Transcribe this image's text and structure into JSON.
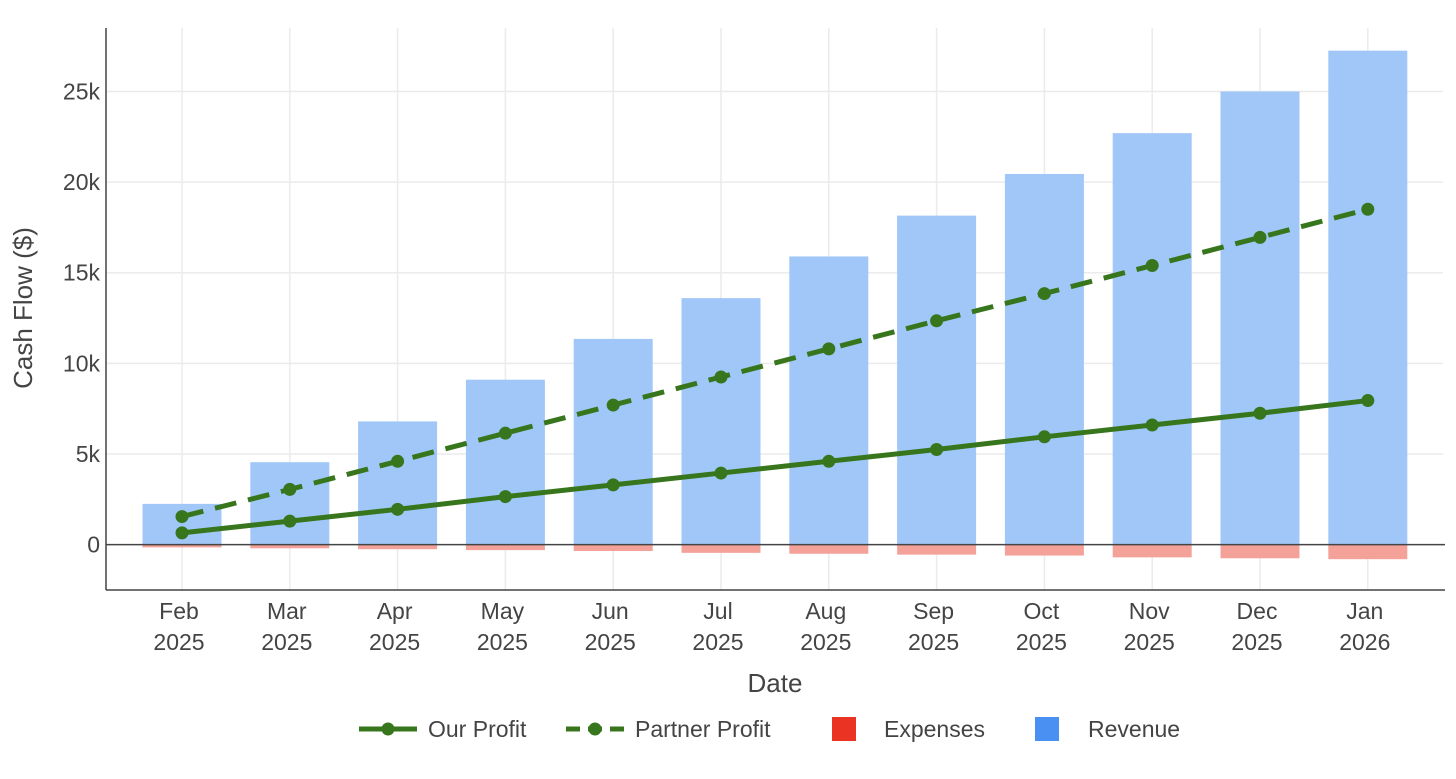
{
  "chart_data": {
    "type": "bar",
    "title": "",
    "xlabel": "Date",
    "ylabel": "Cash Flow ($)",
    "ylim": [
      -2500,
      28500
    ],
    "y_ticks": [
      0,
      5000,
      10000,
      15000,
      20000,
      25000
    ],
    "y_tick_labels": [
      "0",
      "5k",
      "10k",
      "15k",
      "20k",
      "25k"
    ],
    "grid": true,
    "legend_position": "bottom-center",
    "categories": [
      [
        "Feb",
        "2025"
      ],
      [
        "Mar",
        "2025"
      ],
      [
        "Apr",
        "2025"
      ],
      [
        "May",
        "2025"
      ],
      [
        "Jun",
        "2025"
      ],
      [
        "Jul",
        "2025"
      ],
      [
        "Aug",
        "2025"
      ],
      [
        "Sep",
        "2025"
      ],
      [
        "Oct",
        "2025"
      ],
      [
        "Nov",
        "2025"
      ],
      [
        "Dec",
        "2025"
      ],
      [
        "Jan",
        "2026"
      ]
    ],
    "x": [
      "2025-02",
      "2025-03",
      "2025-04",
      "2025-05",
      "2025-06",
      "2025-07",
      "2025-08",
      "2025-09",
      "2025-10",
      "2025-11",
      "2025-12",
      "2026-01"
    ],
    "series": [
      {
        "name": "Our Profit",
        "kind": "line",
        "dash": "solid",
        "color": "#38761d",
        "values": [
          650,
          1300,
          1950,
          2650,
          3300,
          3950,
          4600,
          5250,
          5950,
          6600,
          7250,
          7950
        ]
      },
      {
        "name": "Partner Profit",
        "kind": "line",
        "dash": "dashed",
        "color": "#38761d",
        "values": [
          1550,
          3050,
          4600,
          6150,
          7700,
          9250,
          10800,
          12350,
          13850,
          15400,
          16950,
          18500
        ]
      },
      {
        "name": "Expenses",
        "kind": "bar",
        "color": "#ea3323",
        "bar_color": "#f4a19a",
        "values": [
          -150,
          -200,
          -250,
          -300,
          -350,
          -450,
          -500,
          -550,
          -600,
          -700,
          -750,
          -800
        ]
      },
      {
        "name": "Revenue",
        "kind": "bar",
        "color": "#4a90f2",
        "bar_color": "#a1c7f8",
        "values": [
          2250,
          4550,
          6800,
          9100,
          11350,
          13600,
          15900,
          18150,
          20450,
          22700,
          25000,
          27250
        ]
      }
    ]
  }
}
